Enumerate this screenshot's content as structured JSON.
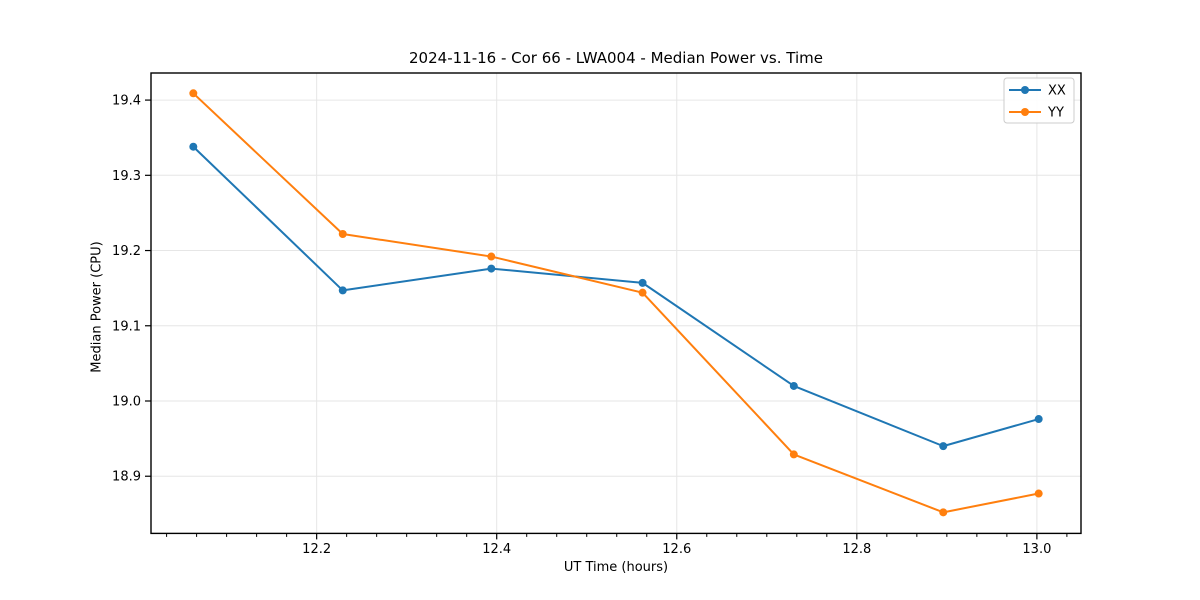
{
  "chart_data": {
    "type": "line",
    "title": "2024-11-16 - Cor 66 - LWA004 - Median Power vs. Time",
    "xlabel": "UT Time (hours)",
    "ylabel": "Median Power (CPU)",
    "x": [
      12.063,
      12.229,
      12.394,
      12.562,
      12.73,
      12.896,
      13.002
    ],
    "series": [
      {
        "name": "XX",
        "color": "#1f77b4",
        "values": [
          19.338,
          19.147,
          19.176,
          19.157,
          19.02,
          18.94,
          18.976
        ]
      },
      {
        "name": "YY",
        "color": "#ff7f0e",
        "values": [
          19.409,
          19.222,
          19.192,
          19.144,
          18.929,
          18.852,
          18.877
        ]
      }
    ],
    "xlim": [
      12.016,
      13.049
    ],
    "ylim": [
      18.824,
      19.436
    ],
    "xticks": [
      12.2,
      12.4,
      12.6,
      12.8,
      13.0
    ],
    "yticks": [
      18.9,
      19.0,
      19.1,
      19.2,
      19.3,
      19.4
    ],
    "x_minor_tick_interval": 0.0333333,
    "tick_label_decimals": 1,
    "grid": true,
    "grid_color": "#e6e6e6",
    "spine_color": "#000000",
    "tick_color": "#000000",
    "text_color": "#000000",
    "background_color": "#ffffff",
    "line_width": 2,
    "marker": "circle",
    "marker_radius": 4,
    "legend": {
      "position": "upper right",
      "entries": [
        "XX",
        "YY"
      ],
      "border_color": "#cccccc",
      "background_color": "#ffffff"
    }
  }
}
